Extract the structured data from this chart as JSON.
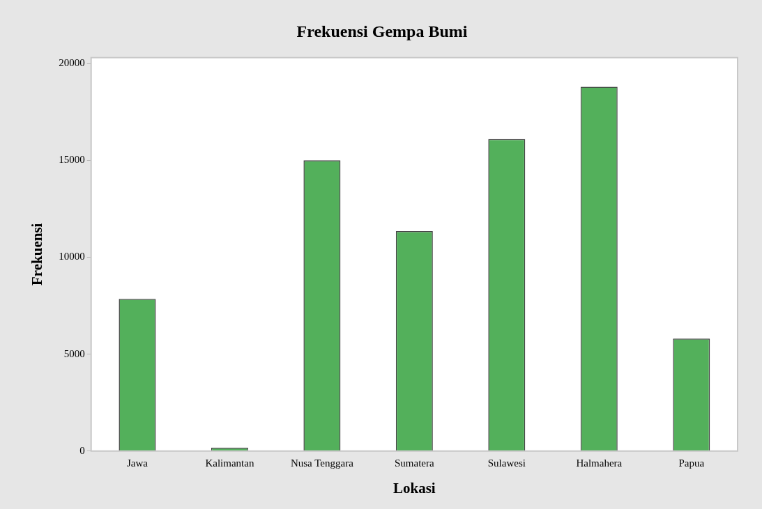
{
  "chart_data": {
    "type": "bar",
    "title": "Frekuensi Gempa Bumi",
    "xlabel": "Lokasi",
    "ylabel": "Frekuensi",
    "categories": [
      "Jawa",
      "Kalimantan",
      "Nusa Tenggara",
      "Sumatera",
      "Sulawesi",
      "Halmahera",
      "Papua"
    ],
    "values": [
      7850,
      170,
      15000,
      11350,
      16100,
      18800,
      5800
    ],
    "color": "#53b05b",
    "ylim": [
      0,
      20300
    ],
    "yticks": [
      0,
      5000,
      10000,
      15000,
      20000
    ],
    "grid": false,
    "legend": false
  }
}
